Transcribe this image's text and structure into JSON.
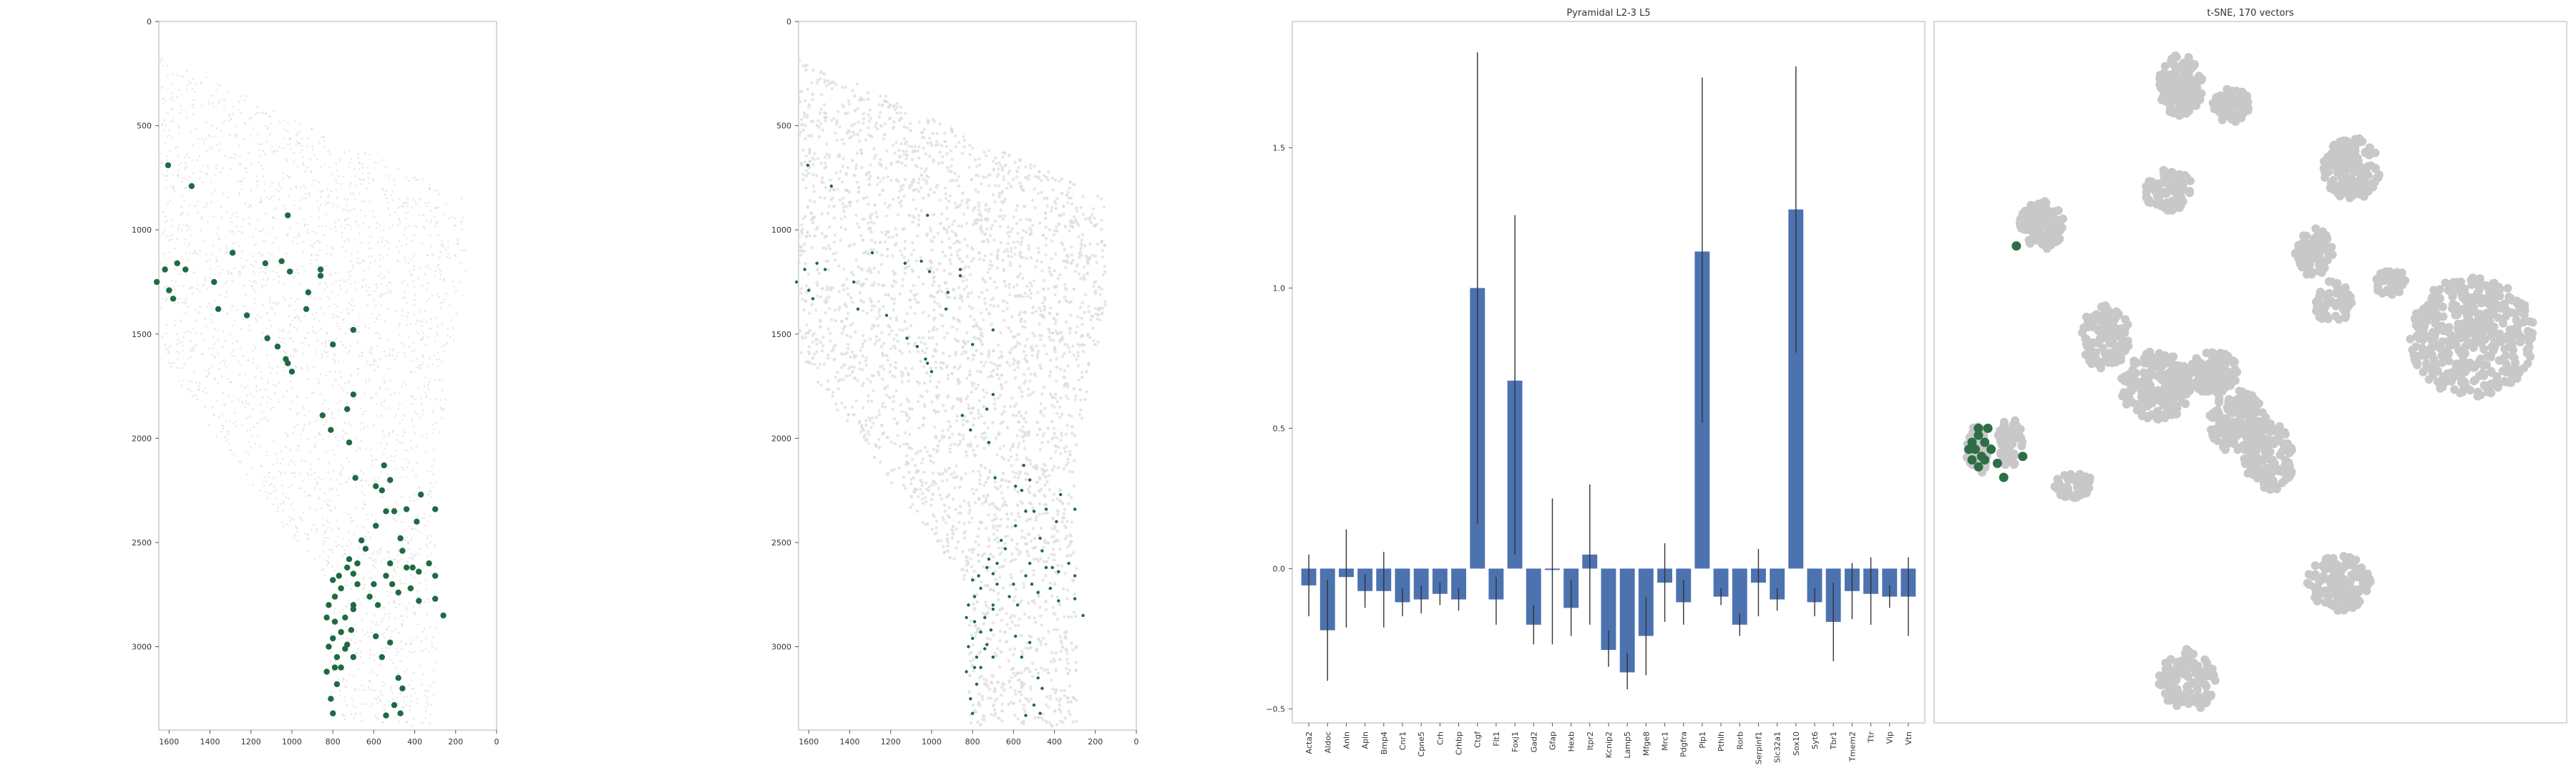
{
  "chart_data": [
    {
      "type": "scatter",
      "title": "",
      "xlabel": "",
      "ylabel": "",
      "xlim": [
        1650,
        0
      ],
      "ylim": [
        3400,
        0
      ],
      "x_ticks": [
        "1600",
        "1400",
        "1200",
        "1000",
        "800",
        "600",
        "400",
        "200",
        "0"
      ],
      "y_ticks": [
        "0",
        "500",
        "1000",
        "1500",
        "2000",
        "2500",
        "3000"
      ],
      "background_color": "#bdbdbd",
      "highlight_color": "#1e6b40",
      "highlighted_cells": [
        [
          1605,
          690
        ],
        [
          1490,
          790
        ],
        [
          1560,
          1160
        ],
        [
          1620,
          1190
        ],
        [
          1520,
          1190
        ],
        [
          1660,
          1250
        ],
        [
          1600,
          1290
        ],
        [
          1580,
          1330
        ],
        [
          1380,
          1250
        ],
        [
          1360,
          1380
        ],
        [
          1290,
          1110
        ],
        [
          1220,
          1410
        ],
        [
          1020,
          930
        ],
        [
          1050,
          1150
        ],
        [
          1010,
          1200
        ],
        [
          920,
          1300
        ],
        [
          930,
          1380
        ],
        [
          860,
          1220
        ],
        [
          860,
          1190
        ],
        [
          1130,
          1160
        ],
        [
          1120,
          1520
        ],
        [
          1070,
          1560
        ],
        [
          1030,
          1620
        ],
        [
          1020,
          1640
        ],
        [
          1000,
          1680
        ],
        [
          800,
          1550
        ],
        [
          700,
          1480
        ],
        [
          700,
          1790
        ],
        [
          730,
          1860
        ],
        [
          850,
          1890
        ],
        [
          810,
          1960
        ],
        [
          720,
          2020
        ],
        [
          690,
          2190
        ],
        [
          550,
          2130
        ],
        [
          520,
          2200
        ],
        [
          590,
          2230
        ],
        [
          560,
          2250
        ],
        [
          500,
          2350
        ],
        [
          540,
          2350
        ],
        [
          440,
          2340
        ],
        [
          370,
          2270
        ],
        [
          300,
          2340
        ],
        [
          390,
          2400
        ],
        [
          470,
          2480
        ],
        [
          460,
          2540
        ],
        [
          520,
          2600
        ],
        [
          440,
          2620
        ],
        [
          410,
          2620
        ],
        [
          380,
          2640
        ],
        [
          330,
          2600
        ],
        [
          300,
          2660
        ],
        [
          540,
          2660
        ],
        [
          510,
          2700
        ],
        [
          480,
          2740
        ],
        [
          420,
          2720
        ],
        [
          380,
          2780
        ],
        [
          300,
          2770
        ],
        [
          260,
          2850
        ],
        [
          660,
          2490
        ],
        [
          590,
          2420
        ],
        [
          640,
          2530
        ],
        [
          680,
          2600
        ],
        [
          600,
          2700
        ],
        [
          620,
          2760
        ],
        [
          700,
          2820
        ],
        [
          580,
          2800
        ],
        [
          590,
          2950
        ],
        [
          560,
          3050
        ],
        [
          520,
          2980
        ],
        [
          480,
          3150
        ],
        [
          460,
          3200
        ],
        [
          500,
          3280
        ],
        [
          470,
          3320
        ],
        [
          540,
          3330
        ],
        [
          800,
          3320
        ],
        [
          810,
          3250
        ],
        [
          780,
          3180
        ],
        [
          790,
          3100
        ],
        [
          830,
          3120
        ],
        [
          780,
          3050
        ],
        [
          820,
          3000
        ],
        [
          800,
          2960
        ],
        [
          760,
          2930
        ],
        [
          790,
          2880
        ],
        [
          830,
          2860
        ],
        [
          820,
          2800
        ],
        [
          790,
          2760
        ],
        [
          760,
          2720
        ],
        [
          800,
          2680
        ],
        [
          770,
          2660
        ],
        [
          730,
          2620
        ],
        [
          720,
          2580
        ],
        [
          700,
          2800
        ],
        [
          740,
          2860
        ],
        [
          710,
          2920
        ],
        [
          730,
          2990
        ],
        [
          740,
          3010
        ],
        [
          700,
          3050
        ],
        [
          760,
          3100
        ],
        [
          700,
          2650
        ],
        [
          680,
          2700
        ]
      ]
    },
    {
      "type": "scatter",
      "title": "",
      "xlabel": "",
      "ylabel": "",
      "xlim": [
        1650,
        0
      ],
      "ylim": [
        3400,
        0
      ],
      "x_ticks": [
        "1600",
        "1400",
        "1200",
        "1000",
        "800",
        "600",
        "400",
        "200",
        "0"
      ],
      "y_ticks": [
        "0",
        "500",
        "1000",
        "1500",
        "2000",
        "2500",
        "3000"
      ],
      "background_color": "#dddddd",
      "highlight_color": "#1e6b40",
      "highlighted_cells": [
        [
          1605,
          690
        ],
        [
          1490,
          790
        ],
        [
          1560,
          1160
        ],
        [
          1620,
          1190
        ],
        [
          1520,
          1190
        ],
        [
          1660,
          1250
        ],
        [
          1600,
          1290
        ],
        [
          1580,
          1330
        ],
        [
          1380,
          1250
        ],
        [
          1360,
          1380
        ],
        [
          1290,
          1110
        ],
        [
          1220,
          1410
        ],
        [
          1020,
          930
        ],
        [
          1050,
          1150
        ],
        [
          1010,
          1200
        ],
        [
          920,
          1300
        ],
        [
          930,
          1380
        ],
        [
          860,
          1220
        ],
        [
          860,
          1190
        ],
        [
          1130,
          1160
        ],
        [
          1120,
          1520
        ],
        [
          1070,
          1560
        ],
        [
          1030,
          1620
        ],
        [
          1020,
          1640
        ],
        [
          1000,
          1680
        ],
        [
          800,
          1550
        ],
        [
          700,
          1480
        ],
        [
          700,
          1790
        ],
        [
          730,
          1860
        ],
        [
          850,
          1890
        ],
        [
          810,
          1960
        ],
        [
          720,
          2020
        ],
        [
          690,
          2190
        ],
        [
          550,
          2130
        ],
        [
          520,
          2200
        ],
        [
          590,
          2230
        ],
        [
          560,
          2250
        ],
        [
          500,
          2350
        ],
        [
          540,
          2350
        ],
        [
          440,
          2340
        ],
        [
          370,
          2270
        ],
        [
          300,
          2340
        ],
        [
          390,
          2400
        ],
        [
          470,
          2480
        ],
        [
          460,
          2540
        ],
        [
          520,
          2600
        ],
        [
          440,
          2620
        ],
        [
          410,
          2620
        ],
        [
          380,
          2640
        ],
        [
          330,
          2600
        ],
        [
          300,
          2660
        ],
        [
          540,
          2660
        ],
        [
          510,
          2700
        ],
        [
          480,
          2740
        ],
        [
          420,
          2720
        ],
        [
          380,
          2780
        ],
        [
          300,
          2770
        ],
        [
          260,
          2850
        ],
        [
          660,
          2490
        ],
        [
          590,
          2420
        ],
        [
          640,
          2530
        ],
        [
          680,
          2600
        ],
        [
          600,
          2700
        ],
        [
          620,
          2760
        ],
        [
          700,
          2820
        ],
        [
          580,
          2800
        ],
        [
          590,
          2950
        ],
        [
          560,
          3050
        ],
        [
          520,
          2980
        ],
        [
          480,
          3150
        ],
        [
          460,
          3200
        ],
        [
          500,
          3280
        ],
        [
          470,
          3320
        ],
        [
          540,
          3330
        ],
        [
          800,
          3320
        ],
        [
          810,
          3250
        ],
        [
          780,
          3180
        ],
        [
          790,
          3100
        ],
        [
          830,
          3120
        ],
        [
          780,
          3050
        ],
        [
          820,
          3000
        ],
        [
          800,
          2960
        ],
        [
          760,
          2930
        ],
        [
          790,
          2880
        ],
        [
          830,
          2860
        ],
        [
          820,
          2800
        ],
        [
          790,
          2760
        ],
        [
          760,
          2720
        ],
        [
          800,
          2680
        ],
        [
          770,
          2660
        ],
        [
          730,
          2620
        ],
        [
          720,
          2580
        ],
        [
          700,
          2800
        ],
        [
          740,
          2860
        ],
        [
          710,
          2920
        ],
        [
          730,
          2990
        ],
        [
          740,
          3010
        ],
        [
          700,
          3050
        ],
        [
          760,
          3100
        ],
        [
          700,
          2650
        ],
        [
          680,
          2700
        ]
      ]
    },
    {
      "type": "bar",
      "title": "Pyramidal L2-3 L5",
      "xlabel": "",
      "ylabel": "",
      "ylim": [
        -0.55,
        1.95
      ],
      "y_ticks": [
        -0.5,
        0.0,
        0.5,
        1.0,
        1.5
      ],
      "y_tick_labels": [
        "−0.5",
        "0.0",
        "0.5",
        "1.0",
        "1.5"
      ],
      "bar_color": "#4c72b0",
      "categories": [
        "Acta2",
        "Aldoc",
        "Anln",
        "Apln",
        "Bmp4",
        "Cnr1",
        "Cpne5",
        "Crh",
        "Crhbp",
        "Ctgf",
        "Flt1",
        "Foxj1",
        "Gad2",
        "Gfap",
        "Hexb",
        "Itpr2",
        "Kcnip2",
        "Lamp5",
        "Mfge8",
        "Mrc1",
        "Pdgfra",
        "Plp1",
        "Pthlh",
        "Rorb",
        "Serpinf1",
        "Slc32a1",
        "Sox10",
        "Syt6",
        "Tbr1",
        "Tmem2",
        "Ttr",
        "Vip",
        "Vtn"
      ],
      "values": [
        -0.06,
        -0.22,
        -0.03,
        -0.08,
        -0.08,
        -0.12,
        -0.11,
        -0.09,
        -0.11,
        1.0,
        -0.11,
        0.67,
        -0.2,
        -0.005,
        -0.14,
        0.05,
        -0.29,
        -0.37,
        -0.24,
        -0.05,
        -0.12,
        1.13,
        -0.1,
        -0.2,
        -0.05,
        -0.11,
        1.28,
        -0.12,
        -0.19,
        -0.08,
        -0.09,
        -0.1,
        -0.1
      ],
      "error_low": [
        -0.17,
        -0.4,
        -0.21,
        -0.14,
        -0.21,
        -0.17,
        -0.16,
        -0.13,
        -0.15,
        0.16,
        -0.2,
        0.05,
        -0.27,
        -0.27,
        -0.24,
        -0.2,
        -0.35,
        -0.43,
        -0.38,
        -0.19,
        -0.2,
        0.52,
        -0.13,
        -0.24,
        -0.17,
        -0.15,
        0.77,
        -0.17,
        -0.33,
        -0.18,
        -0.2,
        -0.14,
        -0.24
      ],
      "error_high": [
        0.05,
        -0.04,
        0.14,
        -0.02,
        0.06,
        -0.07,
        -0.06,
        -0.05,
        -0.07,
        1.84,
        -0.03,
        1.26,
        -0.13,
        0.25,
        -0.04,
        0.3,
        -0.22,
        -0.3,
        -0.1,
        0.09,
        -0.04,
        1.75,
        -0.07,
        -0.16,
        0.07,
        -0.07,
        1.79,
        -0.07,
        -0.05,
        0.02,
        0.04,
        -0.06,
        0.04
      ]
    },
    {
      "type": "scatter",
      "title": "t-SNE, 170 vectors",
      "xlabel": "",
      "ylabel": "",
      "grid": false,
      "background_color": "#c8c8c8",
      "highlight_color": "#2e6e45",
      "clusters": [
        {
          "cx": 0.39,
          "cy": 0.09,
          "rx": 0.035,
          "ry": 0.045,
          "n": 140
        },
        {
          "cx": 0.47,
          "cy": 0.12,
          "rx": 0.03,
          "ry": 0.025,
          "n": 70
        },
        {
          "cx": 0.37,
          "cy": 0.24,
          "rx": 0.04,
          "ry": 0.03,
          "n": 90
        },
        {
          "cx": 0.66,
          "cy": 0.21,
          "rx": 0.045,
          "ry": 0.045,
          "n": 150
        },
        {
          "cx": 0.17,
          "cy": 0.29,
          "rx": 0.035,
          "ry": 0.035,
          "n": 110
        },
        {
          "cx": 0.6,
          "cy": 0.33,
          "rx": 0.03,
          "ry": 0.035,
          "n": 80
        },
        {
          "cx": 0.63,
          "cy": 0.4,
          "rx": 0.03,
          "ry": 0.03,
          "n": 60
        },
        {
          "cx": 0.72,
          "cy": 0.37,
          "rx": 0.025,
          "ry": 0.02,
          "n": 35
        },
        {
          "cx": 0.85,
          "cy": 0.45,
          "rx": 0.1,
          "ry": 0.085,
          "n": 400
        },
        {
          "cx": 0.27,
          "cy": 0.45,
          "rx": 0.04,
          "ry": 0.045,
          "n": 130
        },
        {
          "cx": 0.35,
          "cy": 0.52,
          "rx": 0.055,
          "ry": 0.05,
          "n": 200
        },
        {
          "cx": 0.44,
          "cy": 0.5,
          "rx": 0.04,
          "ry": 0.03,
          "n": 110
        },
        {
          "cx": 0.48,
          "cy": 0.57,
          "rx": 0.045,
          "ry": 0.045,
          "n": 150
        },
        {
          "cx": 0.53,
          "cy": 0.62,
          "rx": 0.04,
          "ry": 0.05,
          "n": 120
        },
        {
          "cx": 0.07,
          "cy": 0.61,
          "rx": 0.02,
          "ry": 0.035,
          "n": 70
        },
        {
          "cx": 0.12,
          "cy": 0.6,
          "rx": 0.02,
          "ry": 0.035,
          "n": 60
        },
        {
          "cx": 0.22,
          "cy": 0.66,
          "rx": 0.03,
          "ry": 0.02,
          "n": 55
        },
        {
          "cx": 0.64,
          "cy": 0.8,
          "rx": 0.05,
          "ry": 0.04,
          "n": 130
        },
        {
          "cx": 0.4,
          "cy": 0.94,
          "rx": 0.045,
          "ry": 0.045,
          "n": 120
        }
      ],
      "highlighted_points": [
        [
          0.13,
          0.32
        ],
        [
          0.07,
          0.59
        ],
        [
          0.065,
          0.61
        ],
        [
          0.075,
          0.62
        ],
        [
          0.08,
          0.6
        ],
        [
          0.06,
          0.6
        ],
        [
          0.07,
          0.58
        ],
        [
          0.085,
          0.58
        ],
        [
          0.08,
          0.625
        ],
        [
          0.06,
          0.625
        ],
        [
          0.09,
          0.61
        ],
        [
          0.055,
          0.61
        ],
        [
          0.07,
          0.635
        ],
        [
          0.1,
          0.63
        ],
        [
          0.14,
          0.62
        ],
        [
          0.11,
          0.65
        ]
      ]
    }
  ]
}
